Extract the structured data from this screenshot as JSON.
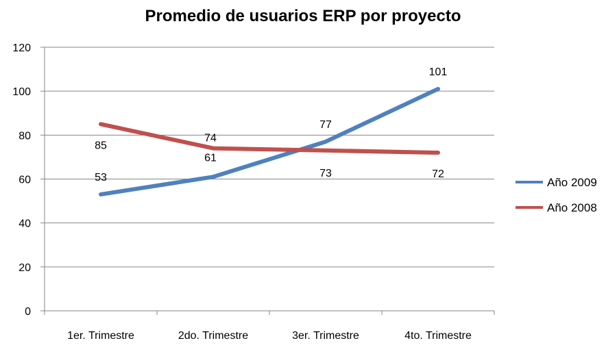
{
  "chart_data": {
    "type": "line",
    "title": "Promedio de usuarios ERP por proyecto",
    "categories": [
      "1er. Trimestre",
      "2do. Trimestre",
      "3er. Trimestre",
      "4to. Trimestre"
    ],
    "ylim": [
      0,
      120
    ],
    "yticks": [
      0,
      20,
      40,
      60,
      80,
      100,
      120
    ],
    "grid": true,
    "legend_position": "right",
    "series": [
      {
        "name": "Año 2009",
        "values": [
          53,
          61,
          77,
          101
        ],
        "color": "#4F81BD"
      },
      {
        "name": "Año 2008",
        "values": [
          85,
          74,
          73,
          72
        ],
        "color": "#C0504D"
      }
    ]
  }
}
